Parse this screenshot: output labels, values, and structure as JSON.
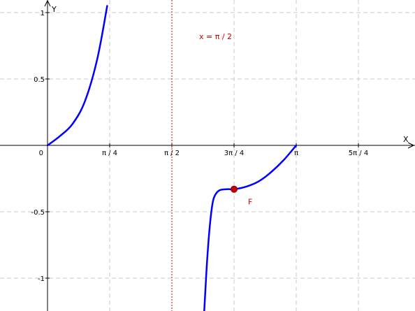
{
  "chart_data": {
    "type": "line",
    "title": "",
    "xlabel": "X",
    "ylabel": "Y",
    "x_unit": "π",
    "xlim": [
      0,
      1.3
    ],
    "ylim": [
      -1.25,
      1.0
    ],
    "grid": true,
    "x_ticks": [
      {
        "value": 0.25,
        "label": "π / 4"
      },
      {
        "value": 0.5,
        "label": "π / 2"
      },
      {
        "value": 0.75,
        "label": "3π / 4"
      },
      {
        "value": 1.0,
        "label": "π"
      },
      {
        "value": 1.25,
        "label": "5π / 4"
      }
    ],
    "y_ticks": [
      {
        "value": 1,
        "label": "1"
      },
      {
        "value": 0.5,
        "label": "0.5"
      },
      {
        "value": -0.5,
        "label": "-0.5"
      },
      {
        "value": -1,
        "label": "-1"
      }
    ],
    "origin_label": "0",
    "series": [
      {
        "color": "#0000ff",
        "segments": [
          [
            [
              0.0,
              0.0
            ],
            [
              0.05,
              0.07
            ],
            [
              0.1,
              0.16
            ],
            [
              0.15,
              0.33
            ],
            [
              0.2,
              0.65
            ],
            [
              0.24,
              1.05
            ]
          ],
          [
            [
              0.63,
              -1.25
            ],
            [
              0.64,
              -0.92
            ],
            [
              0.65,
              -0.66
            ],
            [
              0.66,
              -0.48
            ],
            [
              0.67,
              -0.39
            ],
            [
              0.69,
              -0.34
            ],
            [
              0.72,
              -0.33
            ],
            [
              0.75,
              -0.33
            ],
            [
              0.8,
              -0.31
            ],
            [
              0.85,
              -0.27
            ],
            [
              0.9,
              -0.2
            ],
            [
              0.95,
              -0.11
            ],
            [
              1.0,
              0.0
            ]
          ]
        ]
      }
    ],
    "asymptote": {
      "x": 0.5,
      "label": "x = π / 2",
      "color": "#cc0000"
    },
    "points": [
      {
        "x": 0.75,
        "y": -0.33,
        "label": "F",
        "color": "#cc0000"
      }
    ]
  }
}
